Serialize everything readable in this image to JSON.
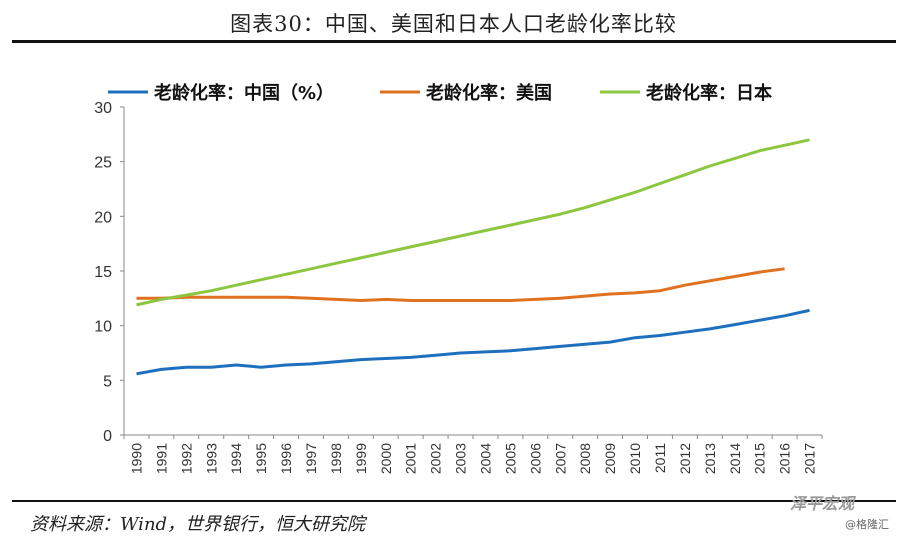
{
  "title": "图表30：中国、美国和日本人口老龄化率比较",
  "source": "资料来源：Wind，世界银行，恒大研究院",
  "watermark": {
    "main": "泽平宏观",
    "sub": "@格隆汇"
  },
  "chart_data": {
    "type": "line",
    "title": "图表30：中国、美国和日本人口老龄化率比较",
    "xlabel": "",
    "ylabel": "",
    "ylim": [
      0,
      30
    ],
    "yticks": [
      0,
      5,
      10,
      15,
      20,
      25,
      30
    ],
    "legend_position": "top",
    "x": [
      1990,
      1991,
      1992,
      1993,
      1994,
      1995,
      1996,
      1997,
      1998,
      1999,
      2000,
      2001,
      2002,
      2003,
      2004,
      2005,
      2006,
      2007,
      2008,
      2009,
      2010,
      2011,
      2012,
      2013,
      2014,
      2015,
      2016,
      2017
    ],
    "series": [
      {
        "name": "老龄化率：中国（%）",
        "color": "#1f6fbf",
        "values": [
          5.6,
          6.0,
          6.2,
          6.2,
          6.4,
          6.2,
          6.4,
          6.5,
          6.7,
          6.9,
          7.0,
          7.1,
          7.3,
          7.5,
          7.6,
          7.7,
          7.9,
          8.1,
          8.3,
          8.5,
          8.9,
          9.1,
          9.4,
          9.7,
          10.1,
          10.5,
          10.9,
          11.4
        ]
      },
      {
        "name": "老龄化率：美国",
        "color": "#e0721f",
        "values": [
          12.5,
          12.5,
          12.6,
          12.6,
          12.6,
          12.6,
          12.6,
          12.5,
          12.4,
          12.3,
          12.4,
          12.3,
          12.3,
          12.3,
          12.3,
          12.3,
          12.4,
          12.5,
          12.7,
          12.9,
          13.0,
          13.2,
          13.7,
          14.1,
          14.5,
          14.9,
          15.2,
          null
        ]
      },
      {
        "name": "老龄化率：日本",
        "color": "#8dc63f",
        "values": [
          11.9,
          12.4,
          12.8,
          13.2,
          13.7,
          14.2,
          14.7,
          15.2,
          15.7,
          16.2,
          16.7,
          17.2,
          17.7,
          18.2,
          18.7,
          19.2,
          19.7,
          20.2,
          20.8,
          21.5,
          22.2,
          23.0,
          23.8,
          24.6,
          25.3,
          26.0,
          26.5,
          27.0
        ]
      }
    ]
  }
}
